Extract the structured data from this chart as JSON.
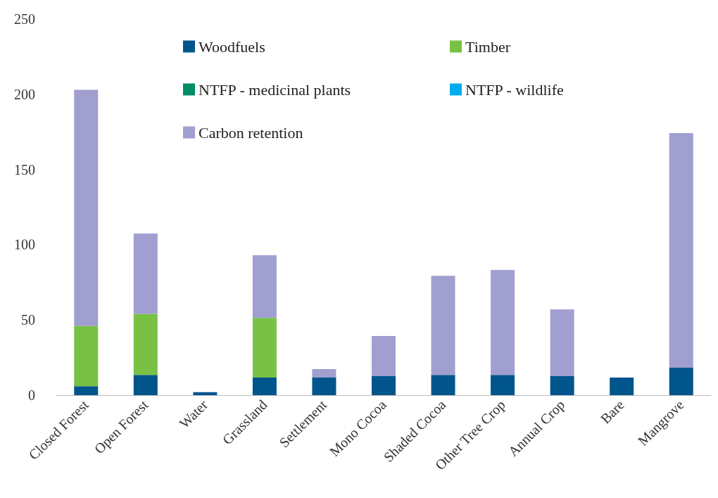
{
  "chart_data": {
    "type": "bar",
    "stacked": true,
    "categories": [
      "Closed Forest",
      "Open Forest",
      "Water",
      "Grassland",
      "Settlement",
      "Mono Cocoa",
      "Shaded Cocoa",
      "Other Tree Crop",
      "Annual Crop",
      "Bare",
      "Mangrove"
    ],
    "series": [
      {
        "name": "Woodfuels",
        "color": "#00558c",
        "values": [
          6,
          13.5,
          2,
          11.7,
          11.7,
          12.6,
          13.5,
          13.5,
          12.6,
          11.7,
          18.2
        ]
      },
      {
        "name": "Timber",
        "color": "#78c144",
        "values": [
          40,
          40.5,
          0,
          39.7,
          0,
          0,
          0,
          0,
          0,
          0,
          0
        ]
      },
      {
        "name": "NTFP - medicinal plants",
        "color": "#008c65",
        "values": [
          0,
          0,
          0,
          0,
          0,
          0,
          0,
          0,
          0,
          0,
          0
        ]
      },
      {
        "name": "NTFP - wildlife",
        "color": "#00aeef",
        "values": [
          0,
          0,
          0,
          0,
          0,
          0,
          0,
          0,
          0,
          0,
          0
        ]
      },
      {
        "name": "Carbon retention",
        "color": "#a09fcf",
        "values": [
          157,
          53.5,
          0,
          41.6,
          5.6,
          26.7,
          65.9,
          69.7,
          44.4,
          0,
          156
        ]
      }
    ],
    "ylim": [
      0,
      250
    ],
    "yticks": [
      0,
      50,
      100,
      150,
      200,
      250
    ],
    "grid": false,
    "legend": "top"
  }
}
